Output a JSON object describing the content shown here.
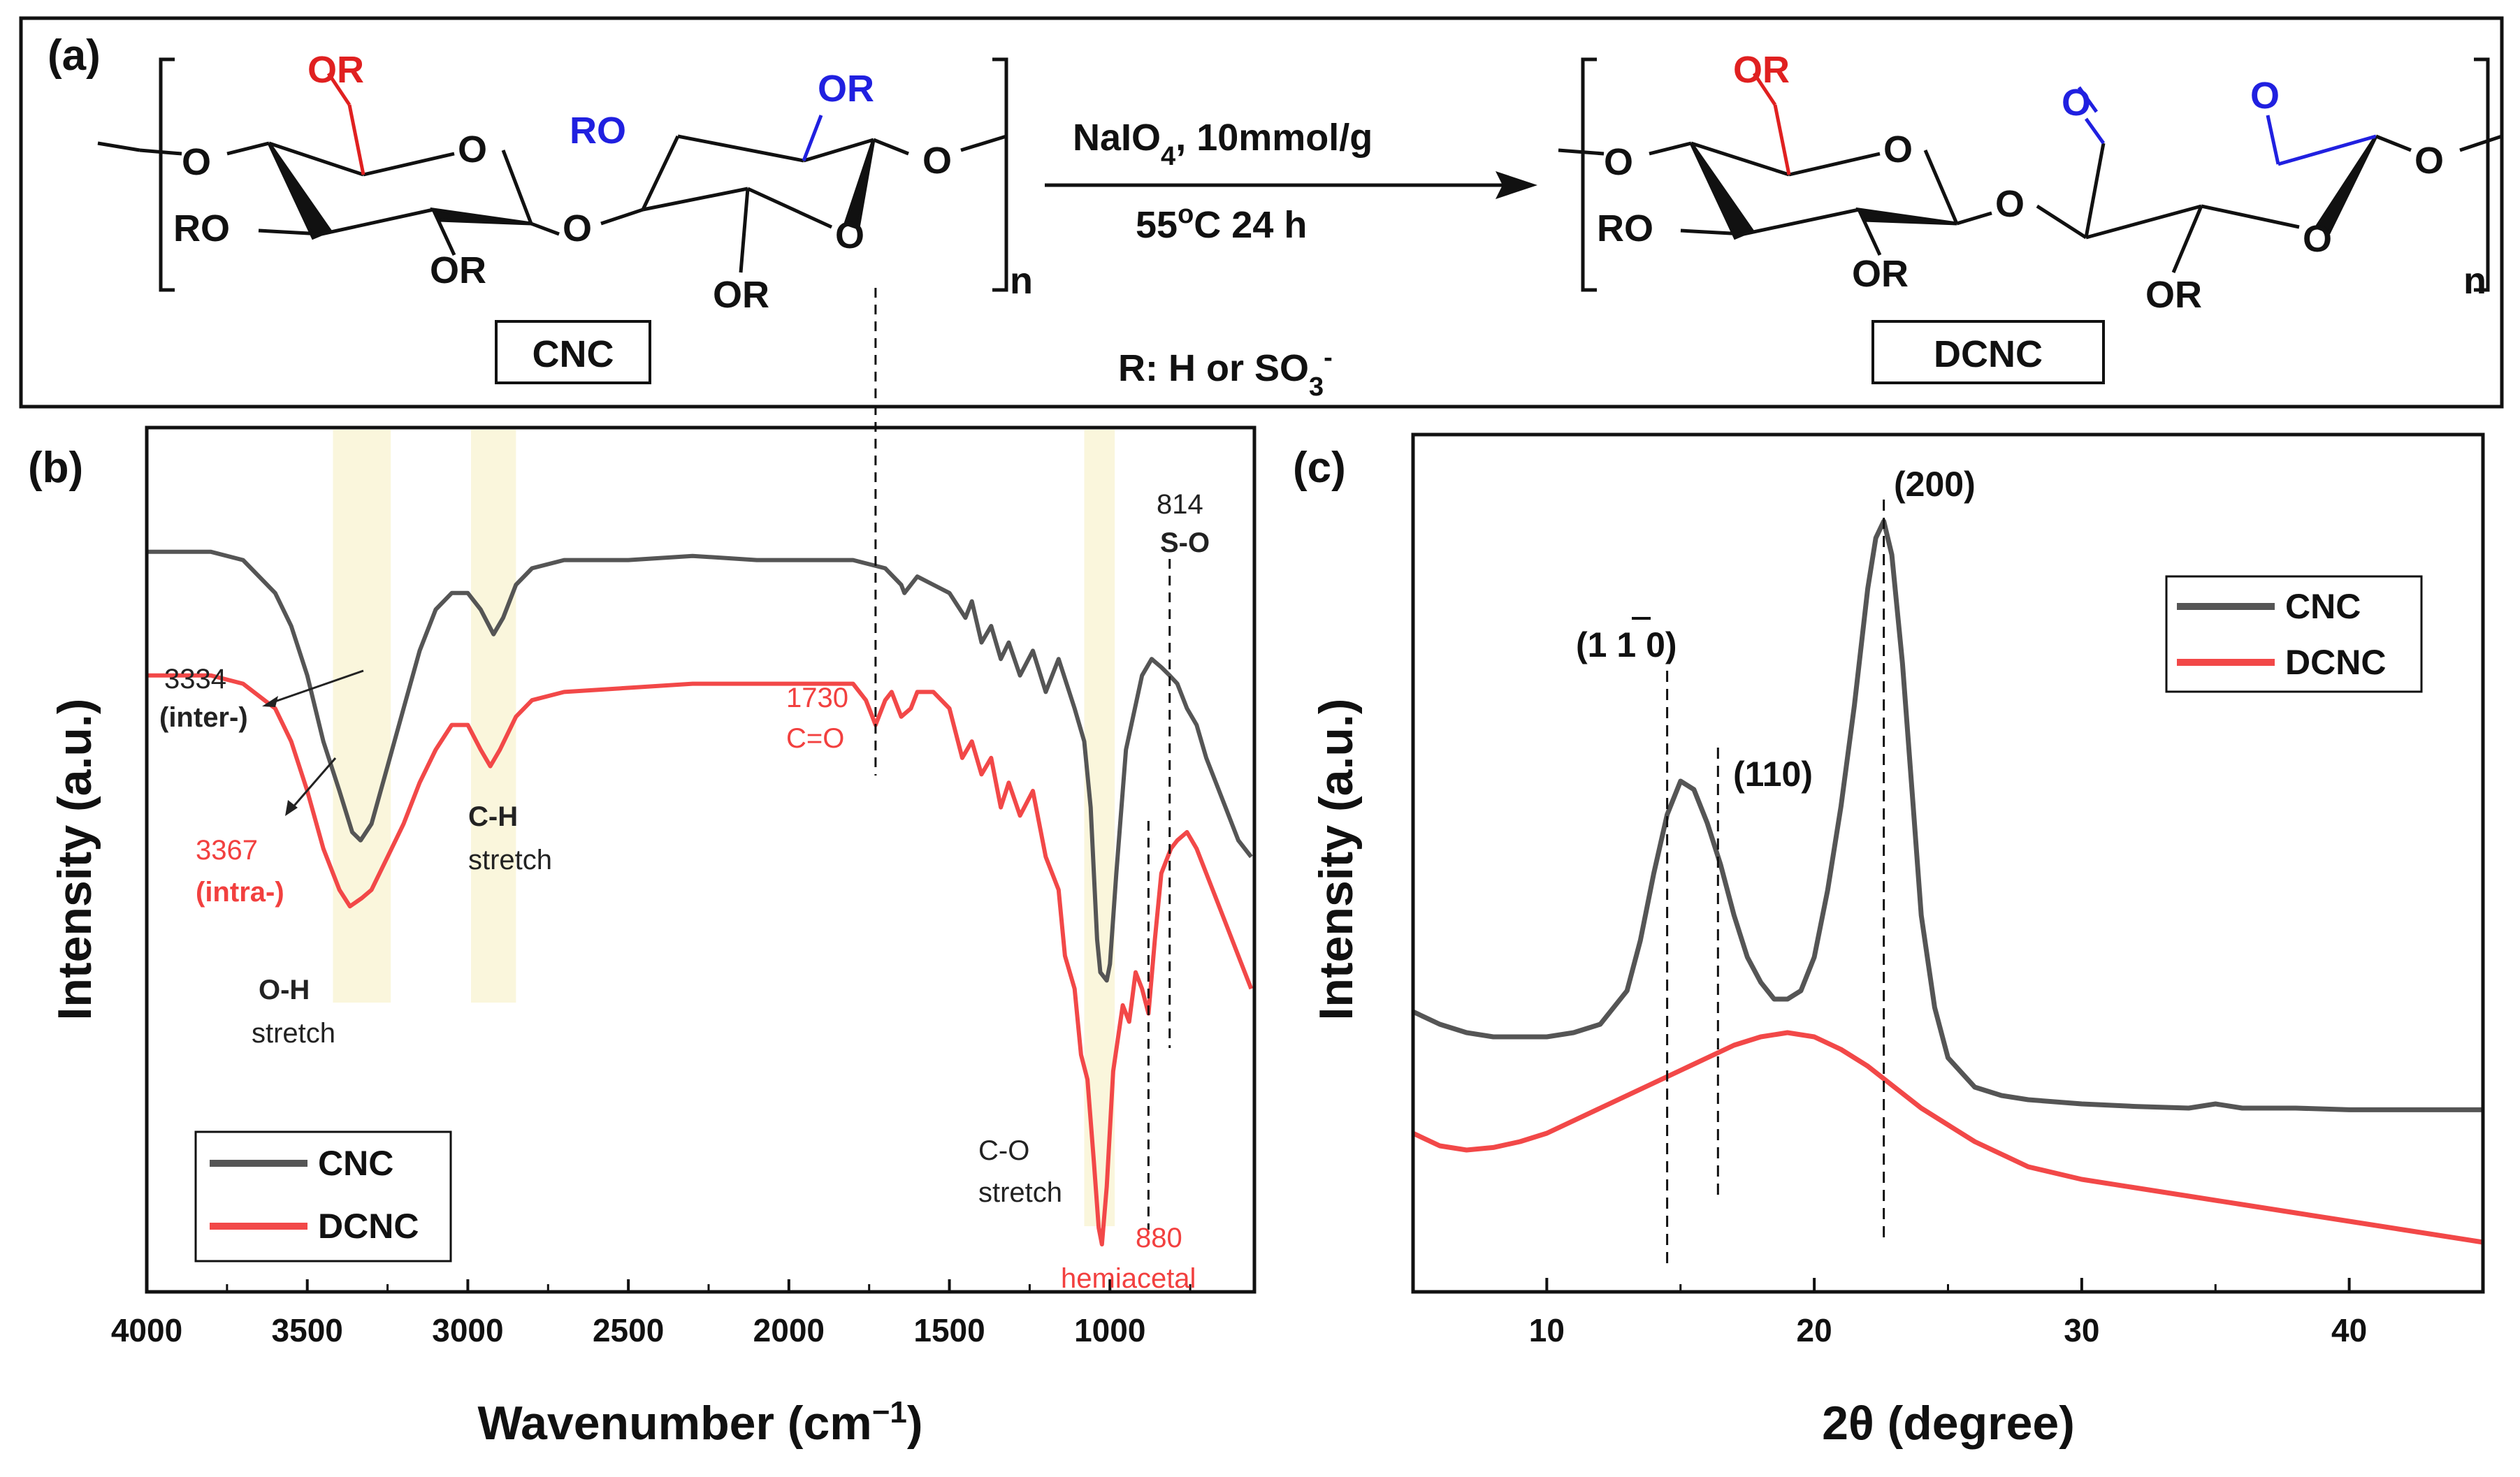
{
  "panel_a": {
    "label": "(a)",
    "reactant": {
      "name": "CNC",
      "groups": {
        "top_left": "OR",
        "top_right": "OR",
        "ro_left": "RO",
        "ro_mid": "RO",
        "ring_o1": "O",
        "ring_o2": "O",
        "link_o": "O",
        "o_left": "O",
        "o_right": "O",
        "or_bottom1": "OR",
        "or_bottom2": "OR",
        "n": "n"
      }
    },
    "reagent_top": "NaIO",
    "reagent_sub": "4",
    "reagent_rest": ", 10mmol/g",
    "condition_pre": "55",
    "condition_sup": "o",
    "condition_post": "C 24 h",
    "r_def_pre": "R: H or SO",
    "r_def_sub": "3",
    "r_def_sup": "-",
    "product": {
      "name": "DCNC",
      "groups": {
        "top_left": "OR",
        "ald1": "O",
        "ald2": "O",
        "ro_left": "RO",
        "ring_o1": "O",
        "ring_o2": "O",
        "link_o": "O",
        "o_left": "O",
        "o_right": "O",
        "or_bottom1": "OR",
        "or_bottom2": "OR",
        "n": "n"
      }
    }
  },
  "chart_data": [
    {
      "id": "b",
      "type": "line",
      "panel_label": "(b)",
      "xlabel_pre": "Wavenumber (cm",
      "xlabel_sup": "−1",
      "xlabel_post": ")",
      "ylabel": "Intensity (a.u.)",
      "xlim": [
        4000,
        550
      ],
      "xaxis_reversed": true,
      "x_ticks": [
        4000,
        3500,
        3000,
        2500,
        2000,
        1500,
        1000
      ],
      "x_tick_labels": [
        "4000",
        "3500",
        "3000",
        "2500",
        "2000",
        "1500",
        "1000"
      ],
      "y_ticks_shown": false,
      "ylim": [
        0,
        100
      ],
      "legend": {
        "position": "bottom-left",
        "entries": [
          {
            "name": "CNC",
            "color": "#555555"
          },
          {
            "name": "DCNC",
            "color": "#f24848"
          }
        ]
      },
      "series": [
        {
          "name": "CNC",
          "color": "#555555",
          "x": [
            4000,
            3800,
            3700,
            3600,
            3550,
            3500,
            3450,
            3400,
            3360,
            3334,
            3300,
            3250,
            3200,
            3150,
            3100,
            3050,
            3000,
            2960,
            2920,
            2890,
            2850,
            2800,
            2700,
            2500,
            2300,
            2100,
            2000,
            1900,
            1800,
            1750,
            1700,
            1650,
            1640,
            1600,
            1550,
            1500,
            1450,
            1430,
            1400,
            1370,
            1340,
            1315,
            1280,
            1240,
            1200,
            1160,
            1110,
            1080,
            1060,
            1040,
            1030,
            1010,
            1000,
            980,
            950,
            900,
            870,
            840,
            814,
            790,
            760,
            730,
            700,
            670,
            640,
            600,
            560
          ],
          "y": [
            89,
            89,
            88,
            84,
            80,
            74,
            66,
            60,
            55,
            54,
            56,
            63,
            70,
            77,
            82,
            84,
            84,
            82,
            79,
            81,
            85,
            87,
            88,
            88,
            88.5,
            88,
            88,
            88,
            88,
            87.5,
            87,
            85,
            84,
            86,
            85,
            84,
            81,
            83,
            78,
            80,
            76,
            78,
            74,
            77,
            72,
            76,
            70,
            66,
            58,
            42,
            38,
            37,
            39,
            50,
            65,
            74,
            76,
            75,
            74,
            73,
            70,
            68,
            64,
            61,
            58,
            54,
            52
          ]
        },
        {
          "name": "DCNC",
          "color": "#f24848",
          "x": [
            4000,
            3800,
            3700,
            3600,
            3550,
            3500,
            3450,
            3400,
            3367,
            3330,
            3300,
            3250,
            3200,
            3150,
            3100,
            3050,
            3000,
            2960,
            2930,
            2900,
            2850,
            2800,
            2700,
            2500,
            2300,
            2100,
            2000,
            1900,
            1800,
            1760,
            1730,
            1700,
            1680,
            1650,
            1620,
            1600,
            1550,
            1500,
            1460,
            1430,
            1400,
            1370,
            1340,
            1315,
            1280,
            1240,
            1200,
            1160,
            1140,
            1110,
            1090,
            1070,
            1050,
            1035,
            1025,
            1010,
            990,
            960,
            940,
            920,
            900,
            880,
            860,
            840,
            810,
            790,
            760,
            730,
            700,
            670,
            640,
            600,
            560
          ],
          "y": [
            74,
            74,
            73,
            70,
            66,
            60,
            53,
            48,
            46,
            47,
            48,
            52,
            56,
            61,
            65,
            68,
            68,
            65,
            63,
            65,
            69,
            71,
            72,
            72.5,
            73,
            73,
            73,
            73,
            73,
            71,
            68,
            71,
            72,
            69,
            70,
            72,
            72,
            70,
            64,
            66,
            62,
            64,
            58,
            61,
            57,
            60,
            52,
            48,
            40,
            36,
            28,
            25,
            15,
            7,
            5,
            12,
            26,
            34,
            32,
            38,
            36,
            33,
            42,
            50,
            53,
            54,
            55,
            53,
            50,
            47,
            44,
            40,
            36
          ]
        }
      ],
      "annotations": [
        {
          "id": "oh-band",
          "wn_from": 3420,
          "wn_to": 3240,
          "text1": "O-H",
          "text2": "stretch"
        },
        {
          "id": "ch-band",
          "wn_from": 2990,
          "wn_to": 2850,
          "text1": "C-H",
          "text2": "stretch"
        },
        {
          "id": "co-band",
          "wn_from": 1080,
          "wn_to": 985,
          "text1": "C-O",
          "text2": "stretch"
        },
        {
          "id": "p3334",
          "text1": "3334",
          "text2": "(inter-)",
          "color": "#222222"
        },
        {
          "id": "p3367",
          "text1": "3367",
          "text2": "(intra-)",
          "color": "#f24848"
        },
        {
          "id": "p1730",
          "wn": 1730,
          "text1": "1730",
          "text2": "C=O",
          "color": "#f24848"
        },
        {
          "id": "p814",
          "wn": 814,
          "text1": "814",
          "text2": "S-O",
          "color": "#222222"
        },
        {
          "id": "p880",
          "wn": 880,
          "text1": "880",
          "text2": "hemiacetal",
          "color": "#f24848"
        }
      ]
    },
    {
      "id": "c",
      "type": "line",
      "panel_label": "(c)",
      "xlabel": "2θ (degree)",
      "ylabel": "Intensity (a.u.)",
      "xlim": [
        5,
        45
      ],
      "x_ticks": [
        10,
        20,
        30,
        40
      ],
      "x_tick_labels": [
        "10",
        "20",
        "30",
        "40"
      ],
      "y_ticks_shown": false,
      "ylim": [
        0,
        100
      ],
      "legend": {
        "position": "top-right",
        "entries": [
          {
            "name": "CNC",
            "color": "#555555"
          },
          {
            "name": "DCNC",
            "color": "#f24848"
          }
        ]
      },
      "series": [
        {
          "name": "CNC",
          "color": "#555555",
          "x": [
            5,
            6,
            7,
            8,
            9,
            10,
            11,
            12,
            13,
            13.5,
            14,
            14.5,
            15,
            15.5,
            16,
            16.5,
            17,
            17.5,
            18,
            18.5,
            19,
            19.5,
            20,
            20.5,
            21,
            21.5,
            22,
            22.3,
            22.6,
            22.9,
            23.3,
            23.7,
            24,
            24.5,
            25,
            26,
            27,
            28,
            30,
            32,
            34,
            35,
            36,
            38,
            40,
            42,
            45
          ],
          "y": [
            33.5,
            32,
            31,
            30.5,
            30.5,
            30.5,
            31,
            32,
            36,
            42,
            50,
            57,
            61,
            60,
            56,
            51,
            45,
            40,
            37,
            35,
            35,
            36,
            40,
            48,
            58,
            70,
            84,
            90,
            92,
            88,
            75,
            58,
            45,
            34,
            28,
            24.5,
            23.5,
            23,
            22.5,
            22.2,
            22,
            22.5,
            22,
            22,
            21.8,
            21.8,
            21.8
          ]
        },
        {
          "name": "DCNC",
          "color": "#f24848",
          "x": [
            5,
            6,
            7,
            8,
            9,
            10,
            11,
            12,
            13,
            14,
            15,
            16,
            17,
            18,
            19,
            20,
            21,
            22,
            23,
            24,
            25,
            26,
            27,
            28,
            30,
            32,
            34,
            36,
            38,
            40,
            42,
            45
          ],
          "y": [
            19,
            17.5,
            17,
            17.3,
            18,
            19,
            20.5,
            22,
            23.5,
            25,
            26.5,
            28,
            29.5,
            30.5,
            31,
            30.5,
            29,
            27,
            24.5,
            22,
            20,
            18,
            16.5,
            15,
            13.5,
            12.5,
            11.5,
            10.5,
            9.5,
            8.5,
            7.5,
            6
          ]
        }
      ],
      "peak_labels": [
        {
          "text": "(200)",
          "x": 22.6
        },
        {
          "text": "(110)",
          "x": 16.4
        },
        {
          "text_pre": "(1 ",
          "text_bar": "1",
          "text_post": " 0)",
          "x": 14.5
        }
      ]
    }
  ]
}
